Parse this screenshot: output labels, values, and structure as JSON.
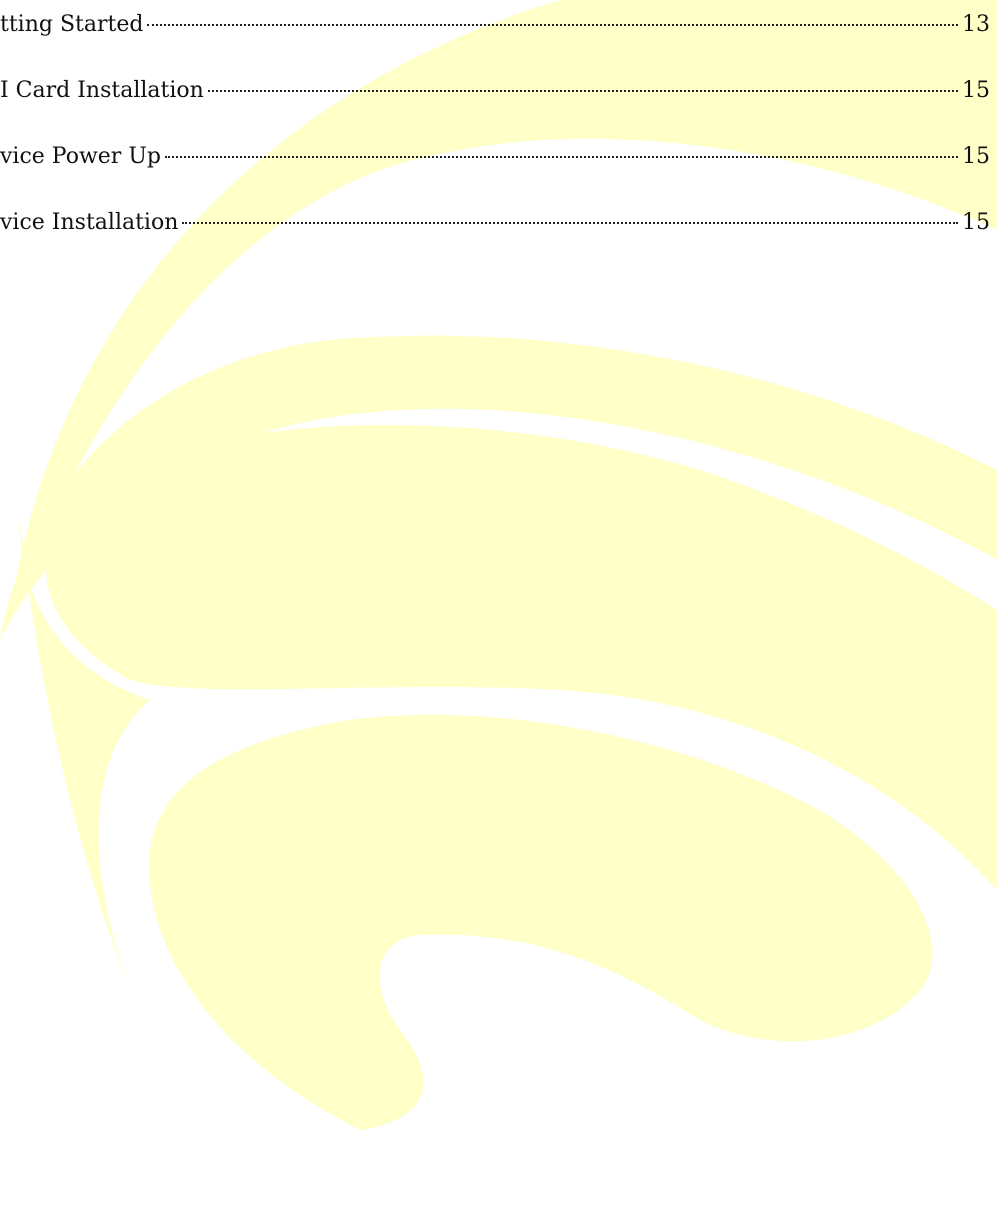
{
  "toc": {
    "entries": [
      {
        "title": "tting Started",
        "page": 13
      },
      {
        "title": "I Card Installation",
        "page": 15
      },
      {
        "title": "vice Power Up",
        "page": 15
      },
      {
        "title": "vice Installation",
        "page": 15
      }
    ]
  }
}
